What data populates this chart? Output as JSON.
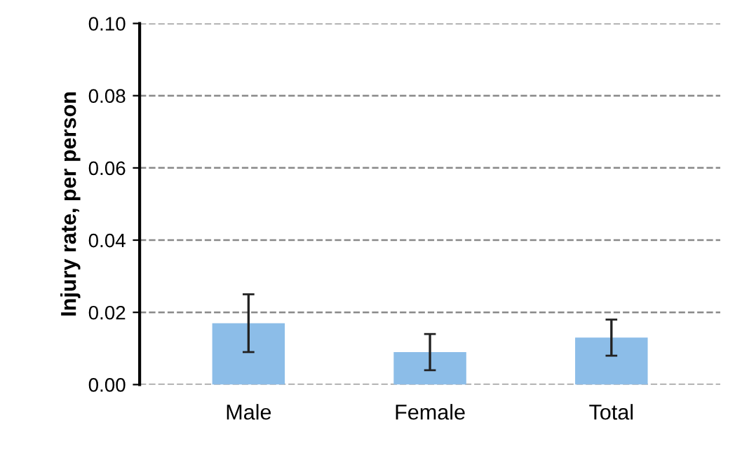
{
  "chart_data": {
    "type": "bar",
    "ylabel": "Injury rate, per person",
    "categories": [
      "Male",
      "Female",
      "Total"
    ],
    "values": [
      0.017,
      0.009,
      0.013
    ],
    "errors": [
      [
        0.009,
        0.025
      ],
      [
        0.004,
        0.014
      ],
      [
        0.008,
        0.018
      ]
    ],
    "color": "#8cbde8",
    "ylim": [
      0,
      0.1
    ],
    "yticks": [
      {
        "value": 0,
        "label": "0.00"
      },
      {
        "value": 0.02,
        "label": "0.02"
      },
      {
        "value": 0.04,
        "label": "0.04"
      },
      {
        "value": 0.06,
        "label": "0.06"
      },
      {
        "value": 0.08,
        "label": "0.08"
      },
      {
        "value": 0.1,
        "label": "0.10"
      }
    ],
    "grid": "y"
  }
}
